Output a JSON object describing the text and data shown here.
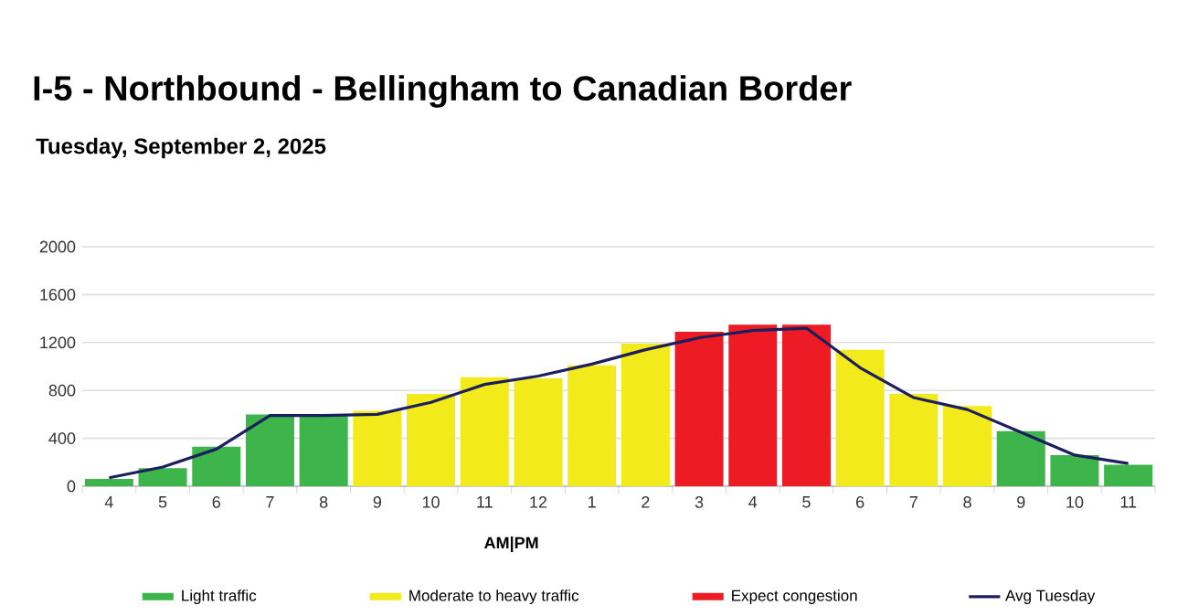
{
  "chart_data": {
    "type": "bar",
    "title": "I-5 - Northbound - Bellingham to Canadian Border",
    "subtitle": "Tuesday, September 2, 2025",
    "categories": [
      "4",
      "5",
      "6",
      "7",
      "8",
      "9",
      "10",
      "11",
      "12",
      "1",
      "2",
      "3",
      "4",
      "5",
      "6",
      "7",
      "8",
      "9",
      "10",
      "11"
    ],
    "series": [
      {
        "name": "Light traffic",
        "color": "#3db54a",
        "values": [
          60,
          150,
          330,
          600,
          600,
          null,
          null,
          null,
          null,
          null,
          null,
          null,
          null,
          null,
          null,
          null,
          null,
          460,
          260,
          180
        ]
      },
      {
        "name": "Moderate to heavy traffic",
        "color": "#f2ea1a",
        "values": [
          null,
          null,
          null,
          null,
          null,
          630,
          770,
          910,
          900,
          1010,
          1190,
          null,
          null,
          null,
          1140,
          770,
          670,
          null,
          null,
          null
        ]
      },
      {
        "name": "Expect congestion",
        "color": "#ed1c24",
        "values": [
          null,
          null,
          null,
          null,
          null,
          null,
          null,
          null,
          null,
          null,
          null,
          1290,
          1350,
          1350,
          null,
          null,
          null,
          null,
          null,
          null
        ]
      },
      {
        "name": "Avg Tuesday",
        "type": "line",
        "color": "#1b1f5e",
        "values": [
          70,
          160,
          310,
          590,
          590,
          600,
          700,
          850,
          920,
          1020,
          1140,
          1240,
          1300,
          1320,
          990,
          740,
          640,
          450,
          260,
          190
        ]
      }
    ],
    "ylim": [
      0,
      2000
    ],
    "yticks": [
      0,
      400,
      800,
      1200,
      1600,
      2000
    ],
    "grid": "y",
    "legend": "bottom",
    "annotations": [
      "AM|PM"
    ]
  }
}
